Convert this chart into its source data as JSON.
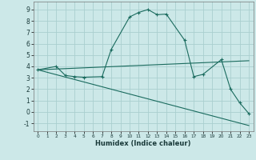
{
  "xlabel": "Humidex (Indice chaleur)",
  "xlim": [
    -0.5,
    23.5
  ],
  "ylim": [
    -1.7,
    9.7
  ],
  "xticks": [
    0,
    1,
    2,
    3,
    4,
    5,
    6,
    7,
    8,
    9,
    10,
    11,
    12,
    13,
    14,
    15,
    16,
    17,
    18,
    19,
    20,
    21,
    22,
    23
  ],
  "yticks": [
    -1,
    0,
    1,
    2,
    3,
    4,
    5,
    6,
    7,
    8,
    9
  ],
  "bg_color": "#cce8e8",
  "grid_color": "#aacfcf",
  "line_color": "#1a6b5e",
  "line1_x": [
    0,
    2,
    3,
    4,
    5,
    7,
    8,
    10,
    11,
    12,
    13,
    14,
    16,
    17,
    18,
    20,
    21,
    22,
    23
  ],
  "line1_y": [
    3.7,
    4.0,
    3.2,
    3.1,
    3.05,
    3.1,
    5.5,
    8.35,
    8.75,
    9.0,
    8.55,
    8.6,
    6.3,
    3.1,
    3.3,
    4.6,
    2.0,
    0.8,
    -0.15
  ],
  "line2_x": [
    0,
    23
  ],
  "line2_y": [
    3.7,
    4.5
  ],
  "line3_x": [
    0,
    23
  ],
  "line3_y": [
    3.7,
    -1.2
  ]
}
